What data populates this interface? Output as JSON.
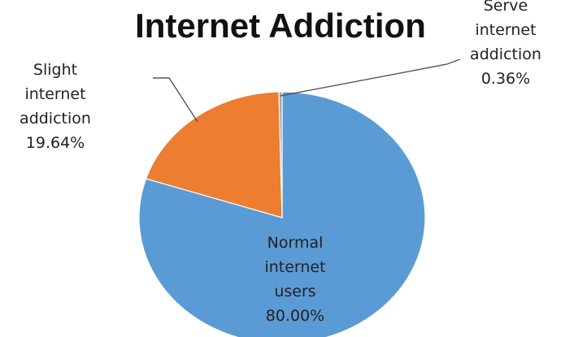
{
  "chart_data": {
    "type": "pie",
    "title": "Internet Addiction",
    "slices": [
      {
        "label_lines": [
          "Normal",
          "internet",
          "users"
        ],
        "percent_label": "80.00%",
        "value": 80.0,
        "color": "#5b9bd5"
      },
      {
        "label_lines": [
          "Slight",
          "internet",
          "addiction"
        ],
        "percent_label": "19.64%",
        "value": 19.64,
        "color": "#ed7d31"
      },
      {
        "label_lines": [
          "Serve",
          "internet",
          "addiction"
        ],
        "percent_label": "0.36%",
        "value": 0.36,
        "color": "#a5a5a5"
      }
    ]
  }
}
